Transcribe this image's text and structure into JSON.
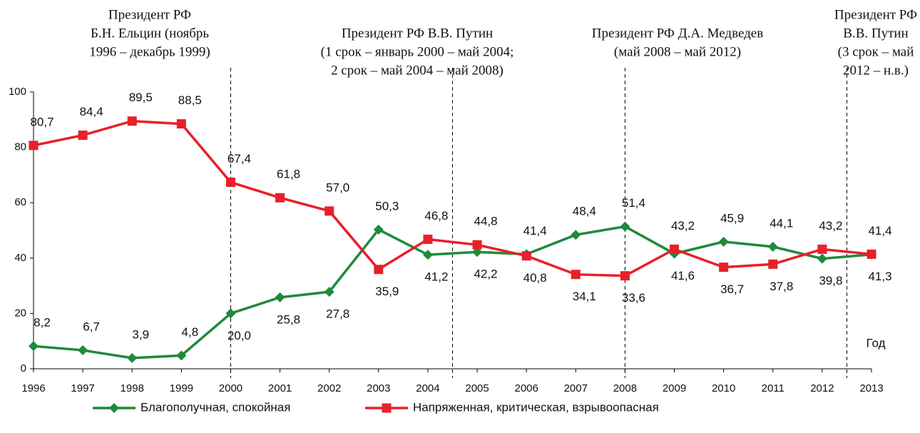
{
  "chart_data": {
    "type": "line",
    "x_label": "Год",
    "categories": [
      "1996",
      "1997",
      "1998",
      "1999",
      "2000",
      "2001",
      "2002",
      "2003",
      "2004",
      "2005",
      "2006",
      "2007",
      "2008",
      "2009",
      "2010",
      "2011",
      "2012",
      "2013"
    ],
    "ylim": [
      0,
      100
    ],
    "yticks": [
      0,
      20,
      40,
      60,
      80,
      100
    ],
    "series": [
      {
        "name": "Благополучная, спокойная",
        "color": "#1f8a3b",
        "marker": "diamond",
        "values": [
          8.2,
          6.7,
          3.9,
          4.8,
          20.0,
          25.8,
          27.8,
          50.3,
          41.2,
          42.2,
          41.4,
          48.4,
          51.4,
          41.6,
          45.9,
          44.1,
          39.8,
          41.3
        ],
        "value_labels": [
          "8,2",
          "6,7",
          "3,9",
          "4,8",
          "20,0",
          "25,8",
          "27,8",
          "50,3",
          "41,2",
          "42,2",
          "41,4",
          "48,4",
          "51,4",
          "41,6",
          "45,9",
          "44,1",
          "39,8",
          "41,3"
        ]
      },
      {
        "name": "Напряженная, критическая, взрывоопасная",
        "color": "#e8202a",
        "marker": "square",
        "values": [
          80.7,
          84.4,
          89.5,
          88.5,
          67.4,
          61.8,
          57.0,
          35.9,
          46.8,
          44.8,
          40.8,
          34.1,
          33.6,
          43.2,
          36.7,
          37.8,
          43.2,
          41.4
        ],
        "value_labels": [
          "80,7",
          "84,4",
          "89,5",
          "88,5",
          "67,4",
          "61,8",
          "57,0",
          "35,9",
          "46,8",
          "44,8",
          "40,8",
          "34,1",
          "33,6",
          "43,2",
          "36,7",
          "37,8",
          "43,2",
          "41,4"
        ]
      }
    ],
    "annotations": [
      [
        "Президент РФ",
        "Б.Н. Ельцин (ноябрь",
        "1996 – декабрь 1999)"
      ],
      [
        "Президент РФ В.В. Путин",
        "(1 срок – январь 2000  – май 2004;",
        "2 срок –  май 2004 – май 2008)"
      ],
      [
        "Президент РФ Д.А. Медведев",
        "(май 2008  – май 2012)"
      ],
      [
        "Президент РФ",
        "В.В. Путин",
        "(3 срок – май",
        "2012  – н.в.)"
      ]
    ]
  }
}
